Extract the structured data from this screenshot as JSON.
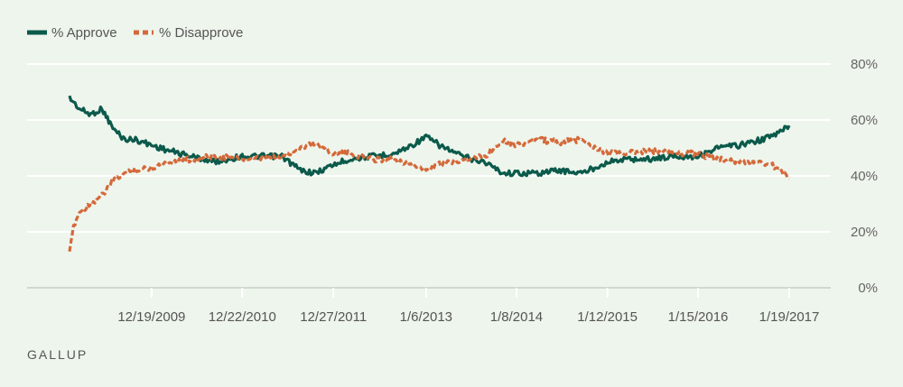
{
  "chart_data": {
    "type": "line",
    "x_ticks": [
      "12/19/2009",
      "12/22/2010",
      "12/27/2011",
      "1/6/2013",
      "1/8/2014",
      "1/12/2015",
      "1/15/2016",
      "1/19/2017"
    ],
    "y_ticks": [
      "80%",
      "60%",
      "40%",
      "20%",
      "0%"
    ],
    "ylim": [
      0,
      80
    ],
    "xlim": [
      "1/20/2009",
      "1/19/2017"
    ],
    "grid": true,
    "legend_position": "top-left",
    "series": [
      {
        "name": "% Approve",
        "color": "#0b5a4b",
        "style": "solid",
        "x": [
          "1/20/2009",
          "3/1/2009",
          "4/15/2009",
          "6/1/2009",
          "7/15/2009",
          "9/1/2009",
          "10/15/2009",
          "12/19/2009",
          "3/1/2010",
          "6/1/2010",
          "9/1/2010",
          "12/22/2010",
          "3/1/2011",
          "6/1/2011",
          "8/15/2011",
          "10/15/2011",
          "12/27/2011",
          "3/1/2012",
          "6/1/2012",
          "9/1/2012",
          "11/10/2012",
          "1/6/2013",
          "3/1/2013",
          "6/1/2013",
          "9/1/2013",
          "11/15/2013",
          "1/8/2014",
          "4/1/2014",
          "7/1/2014",
          "10/1/2014",
          "1/12/2015",
          "4/1/2015",
          "7/1/2015",
          "10/1/2015",
          "1/15/2016",
          "4/1/2016",
          "7/1/2016",
          "10/1/2016",
          "12/1/2016",
          "1/19/2017"
        ],
        "values": [
          68,
          64,
          62,
          64,
          57,
          53,
          53,
          51,
          49,
          47,
          45,
          47,
          47,
          47,
          42,
          41,
          44,
          46,
          47,
          48,
          51,
          54,
          51,
          47,
          45,
          41,
          41,
          41,
          42,
          41,
          45,
          46,
          46,
          47,
          47,
          50,
          51,
          53,
          55,
          58
        ]
      },
      {
        "name": "% Disapprove",
        "color": "#d4693a",
        "style": "dashed",
        "x": [
          "1/20/2009",
          "2/5/2009",
          "3/1/2009",
          "4/15/2009",
          "6/1/2009",
          "7/15/2009",
          "9/1/2009",
          "10/15/2009",
          "12/19/2009",
          "3/1/2010",
          "6/1/2010",
          "9/1/2010",
          "12/22/2010",
          "3/1/2011",
          "6/1/2011",
          "8/15/2011",
          "10/15/2011",
          "12/27/2011",
          "3/1/2012",
          "6/1/2012",
          "9/1/2012",
          "11/10/2012",
          "1/6/2013",
          "3/1/2013",
          "6/1/2013",
          "9/1/2013",
          "11/15/2013",
          "1/8/2014",
          "4/1/2014",
          "7/1/2014",
          "10/1/2014",
          "1/12/2015",
          "4/1/2015",
          "7/1/2015",
          "10/1/2015",
          "1/15/2016",
          "4/1/2016",
          "7/1/2016",
          "10/1/2016",
          "12/1/2016",
          "1/19/2017"
        ],
        "values": [
          12,
          22,
          27,
          30,
          33,
          38,
          41,
          42,
          43,
          45,
          46,
          47,
          46,
          46,
          47,
          50,
          52,
          48,
          48,
          46,
          46,
          44,
          42,
          44,
          46,
          47,
          53,
          51,
          53,
          52,
          53,
          48,
          48,
          49,
          48,
          48,
          46,
          45,
          45,
          43,
          39
        ]
      }
    ],
    "footer": "GALLUP"
  }
}
